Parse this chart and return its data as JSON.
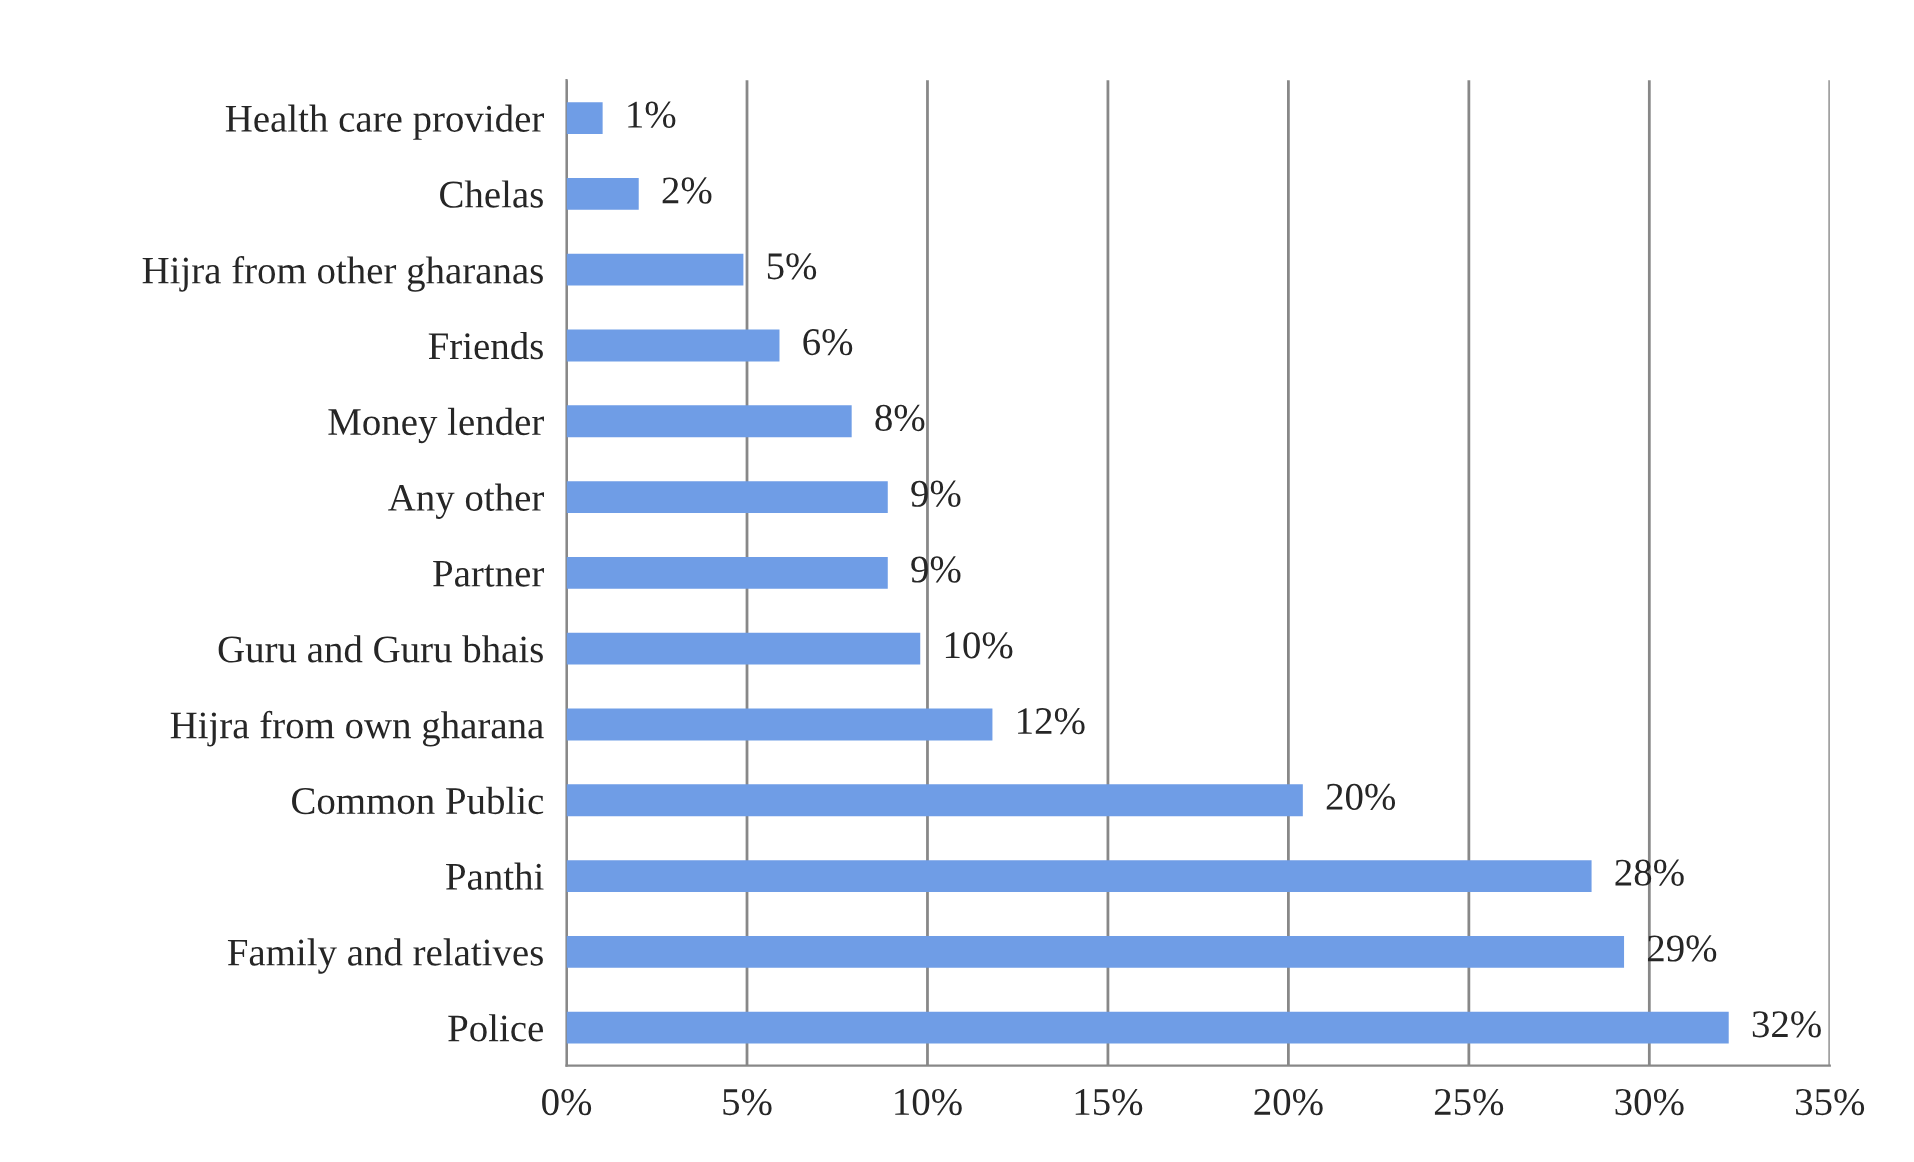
{
  "chart_data": {
    "type": "bar",
    "orientation": "horizontal",
    "categories": [
      "Health care provider",
      "Chelas",
      "Hijra from other gharanas",
      "Friends",
      "Money lender",
      "Any other",
      "Partner",
      "Guru and Guru bhais",
      "Hijra from own gharana",
      "Common Public",
      "Panthi",
      "Family and relatives",
      "Police"
    ],
    "values": [
      1.0,
      2.0,
      4.9,
      5.9,
      7.9,
      8.9,
      8.9,
      9.8,
      11.8,
      20.4,
      28.4,
      29.3,
      32.2
    ],
    "value_labels": [
      "1%",
      "2%",
      "5%",
      "6%",
      "8%",
      "9%",
      "9%",
      "10%",
      "12%",
      "20%",
      "28%",
      "29%",
      "32%"
    ],
    "color": "#6f9de6",
    "xlim": [
      0,
      35
    ],
    "xticks": [
      {
        "value": 0,
        "label": "0%"
      },
      {
        "value": 5,
        "label": "5%"
      },
      {
        "value": 10,
        "label": "10%"
      },
      {
        "value": 15,
        "label": "15%"
      },
      {
        "value": 20,
        "label": "20%"
      },
      {
        "value": 25,
        "label": "25%"
      },
      {
        "value": 30,
        "label": "30%"
      },
      {
        "value": 35,
        "label": "35%"
      }
    ],
    "grid": "x"
  }
}
